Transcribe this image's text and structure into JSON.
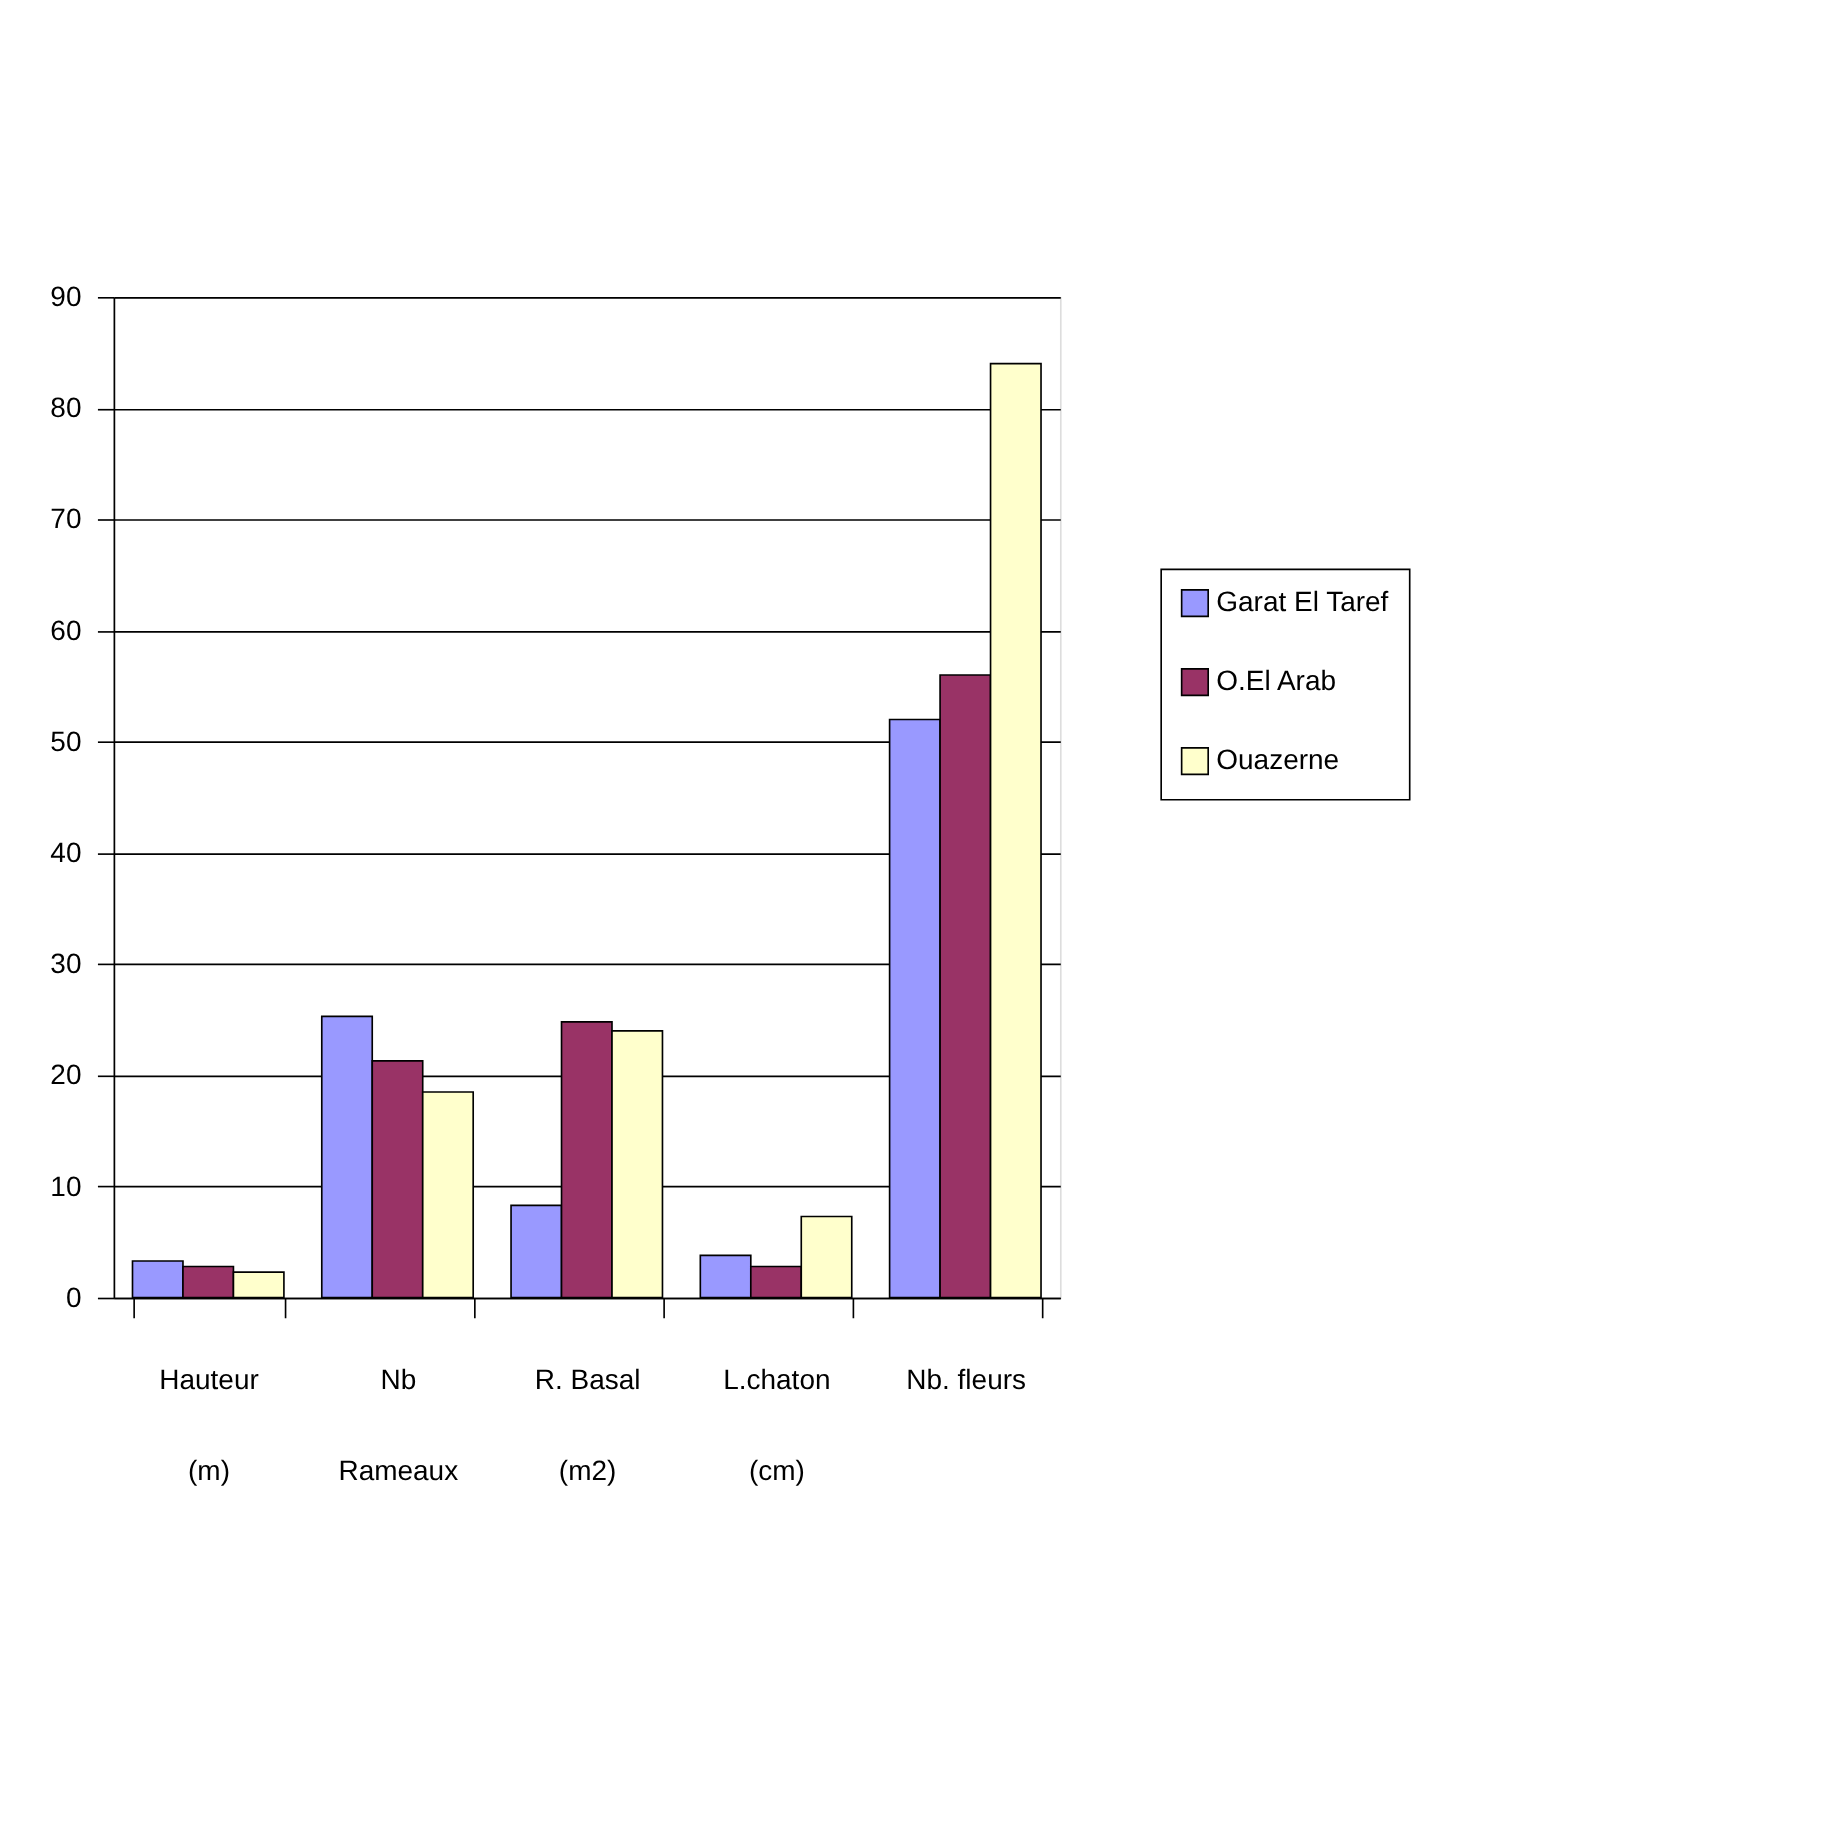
{
  "chart_data": {
    "type": "bar",
    "categories": [
      "Hauteur\n(m)",
      "Nb\nRameaux",
      "R. Basal\n(m2)",
      "L.chaton\n(cm)",
      "Nb. fleurs"
    ],
    "series": [
      {
        "name": "Garat El Taref",
        "color": "#9999ff",
        "values": [
          3.3,
          25.3,
          8.3,
          3.8,
          52
        ]
      },
      {
        "name": "O.El Arab",
        "color": "#993366",
        "values": [
          2.8,
          21.3,
          24.8,
          2.8,
          56
        ]
      },
      {
        "name": "Ouazerne",
        "color": "#ffffcc",
        "values": [
          2.3,
          18.5,
          24,
          7.3,
          84
        ]
      }
    ],
    "ylim": [
      0,
      90
    ],
    "yticks": [
      0,
      10,
      20,
      30,
      40,
      50,
      60,
      70,
      80,
      90
    ],
    "grid": "y",
    "legend": "right"
  }
}
